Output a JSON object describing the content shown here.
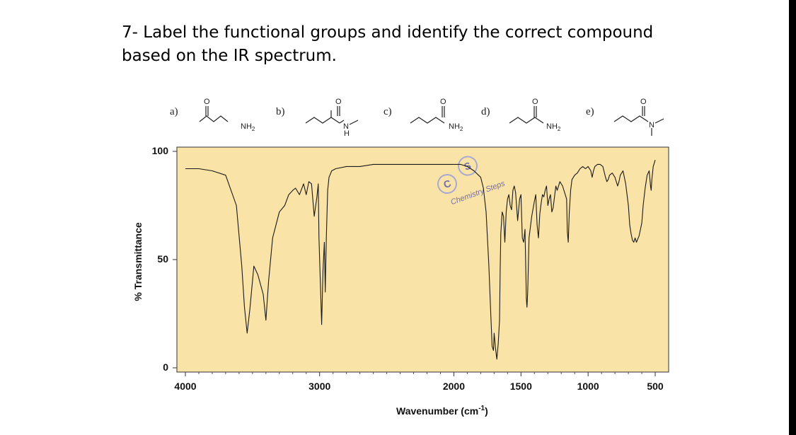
{
  "question": {
    "number": "7-",
    "text": "Label the functional groups and identify the correct compound based on the IR spectrum."
  },
  "compounds": [
    {
      "letter": "a)",
      "structure": "butanamide",
      "atom_labels": [
        "O",
        "NH2"
      ]
    },
    {
      "letter": "b)",
      "structure": "N-methyl-2-methylpropanamide",
      "atom_labels": [
        "O",
        "N",
        "H"
      ]
    },
    {
      "letter": "c)",
      "structure": "butanamide",
      "atom_labels": [
        "O",
        "NH2"
      ]
    },
    {
      "letter": "d)",
      "structure": "pentanamide",
      "atom_labels": [
        "O",
        "NH2"
      ]
    },
    {
      "letter": "e)",
      "structure": "N,N-dimethylbutanamide",
      "atom_labels": [
        "O",
        "N"
      ]
    }
  ],
  "watermark": {
    "text": "Chemistry Steps",
    "badges": [
      "C",
      "S"
    ]
  },
  "colors": {
    "plot_background": "#fae3a7",
    "trace": "#1a1a1a",
    "watermark": "#5a5aa8"
  },
  "chart_data": {
    "type": "line",
    "title": "",
    "xlabel": "Wavenumber (cm-1)",
    "ylabel": "% Transmittance",
    "xlim": [
      4000,
      500
    ],
    "ylim": [
      0,
      100
    ],
    "x_reversed": true,
    "grid": false,
    "x_ticks": [
      4000,
      3000,
      2000,
      1500,
      1000,
      500
    ],
    "y_ticks": [
      0,
      50,
      100
    ],
    "series": [
      {
        "points": [
          [
            4000,
            92
          ],
          [
            3900,
            92
          ],
          [
            3800,
            91
          ],
          [
            3700,
            89
          ],
          [
            3620,
            75
          ],
          [
            3580,
            47
          ],
          [
            3560,
            28
          ],
          [
            3540,
            16
          ],
          [
            3520,
            27
          ],
          [
            3490,
            47
          ],
          [
            3460,
            43
          ],
          [
            3420,
            34
          ],
          [
            3400,
            22
          ],
          [
            3380,
            40
          ],
          [
            3350,
            60
          ],
          [
            3300,
            72
          ],
          [
            3260,
            75
          ],
          [
            3230,
            80
          ],
          [
            3200,
            82
          ],
          [
            3180,
            83
          ],
          [
            3150,
            80
          ],
          [
            3120,
            85
          ],
          [
            3100,
            80
          ],
          [
            3080,
            86
          ],
          [
            3060,
            85
          ],
          [
            3040,
            70
          ],
          [
            3020,
            79
          ],
          [
            3010,
            85
          ],
          [
            3005,
            60
          ],
          [
            2995,
            40
          ],
          [
            2985,
            20
          ],
          [
            2975,
            45
          ],
          [
            2965,
            58
          ],
          [
            2958,
            35
          ],
          [
            2950,
            60
          ],
          [
            2940,
            82
          ],
          [
            2930,
            88
          ],
          [
            2910,
            91
          ],
          [
            2880,
            92
          ],
          [
            2800,
            93
          ],
          [
            2700,
            93
          ],
          [
            2600,
            94
          ],
          [
            2500,
            94
          ],
          [
            2400,
            94
          ],
          [
            2300,
            94
          ],
          [
            2200,
            94
          ],
          [
            2150,
            94
          ],
          [
            2100,
            94
          ],
          [
            2050,
            94
          ],
          [
            2000,
            94
          ],
          [
            1950,
            94
          ],
          [
            1900,
            93
          ],
          [
            1850,
            91
          ],
          [
            1800,
            88
          ],
          [
            1780,
            83
          ],
          [
            1760,
            72
          ],
          [
            1740,
            48
          ],
          [
            1725,
            25
          ],
          [
            1715,
            10
          ],
          [
            1705,
            8
          ],
          [
            1700,
            16
          ],
          [
            1690,
            9
          ],
          [
            1680,
            4
          ],
          [
            1670,
            11
          ],
          [
            1660,
            22
          ],
          [
            1655,
            45
          ],
          [
            1650,
            62
          ],
          [
            1640,
            72
          ],
          [
            1630,
            70
          ],
          [
            1620,
            58
          ],
          [
            1610,
            72
          ],
          [
            1600,
            78
          ],
          [
            1590,
            80
          ],
          [
            1580,
            75
          ],
          [
            1570,
            73
          ],
          [
            1560,
            82
          ],
          [
            1550,
            84
          ],
          [
            1540,
            81
          ],
          [
            1525,
            68
          ],
          [
            1510,
            78
          ],
          [
            1500,
            80
          ],
          [
            1490,
            60
          ],
          [
            1480,
            58
          ],
          [
            1470,
            64
          ],
          [
            1460,
            32
          ],
          [
            1455,
            28
          ],
          [
            1450,
            35
          ],
          [
            1440,
            60
          ],
          [
            1420,
            70
          ],
          [
            1400,
            77
          ],
          [
            1390,
            80
          ],
          [
            1380,
            66
          ],
          [
            1370,
            60
          ],
          [
            1360,
            71
          ],
          [
            1350,
            76
          ],
          [
            1340,
            80
          ],
          [
            1330,
            79
          ],
          [
            1320,
            82
          ],
          [
            1310,
            84
          ],
          [
            1300,
            75
          ],
          [
            1290,
            78
          ],
          [
            1280,
            80
          ],
          [
            1270,
            72
          ],
          [
            1260,
            74
          ],
          [
            1250,
            79
          ],
          [
            1240,
            84
          ],
          [
            1230,
            82
          ],
          [
            1210,
            86
          ],
          [
            1190,
            84
          ],
          [
            1160,
            78
          ],
          [
            1155,
            63
          ],
          [
            1148,
            58
          ],
          [
            1140,
            72
          ],
          [
            1130,
            82
          ],
          [
            1120,
            87
          ],
          [
            1100,
            89
          ],
          [
            1080,
            90
          ],
          [
            1060,
            92
          ],
          [
            1040,
            93
          ],
          [
            1020,
            92
          ],
          [
            1000,
            93
          ],
          [
            980,
            91
          ],
          [
            970,
            88
          ],
          [
            960,
            91
          ],
          [
            950,
            93
          ],
          [
            930,
            94
          ],
          [
            910,
            94
          ],
          [
            890,
            93
          ],
          [
            870,
            88
          ],
          [
            860,
            86
          ],
          [
            850,
            87
          ],
          [
            840,
            89
          ],
          [
            820,
            90
          ],
          [
            800,
            88
          ],
          [
            780,
            84
          ],
          [
            770,
            86
          ],
          [
            760,
            89
          ],
          [
            740,
            91
          ],
          [
            720,
            85
          ],
          [
            700,
            75
          ],
          [
            690,
            66
          ],
          [
            680,
            62
          ],
          [
            670,
            59
          ],
          [
            660,
            58
          ],
          [
            650,
            60
          ],
          [
            640,
            58
          ],
          [
            620,
            61
          ],
          [
            600,
            67
          ],
          [
            590,
            75
          ],
          [
            575,
            83
          ],
          [
            560,
            89
          ],
          [
            545,
            91
          ],
          [
            535,
            84
          ],
          [
            530,
            82
          ],
          [
            525,
            87
          ],
          [
            515,
            93
          ],
          [
            505,
            95
          ],
          [
            500,
            96
          ]
        ]
      }
    ]
  }
}
